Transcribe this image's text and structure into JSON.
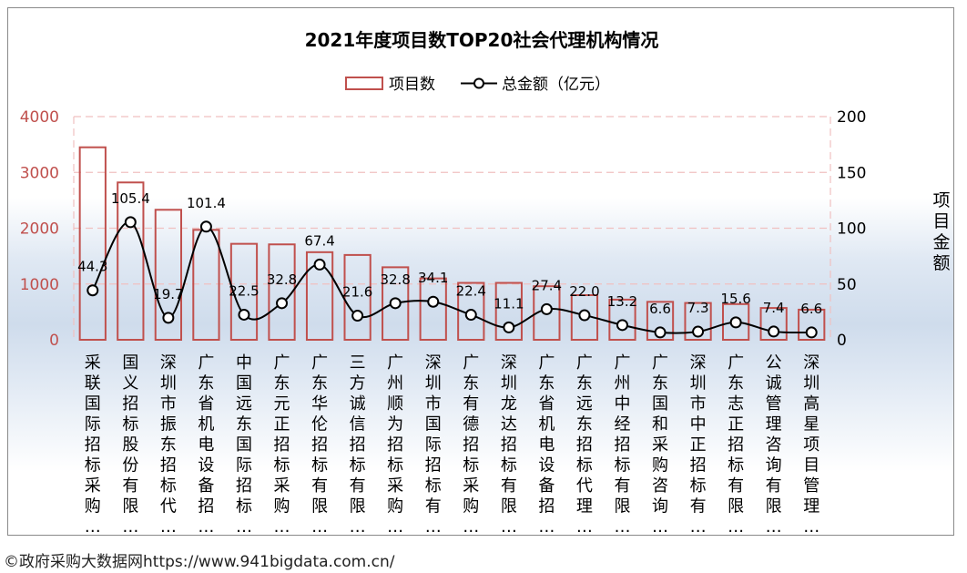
{
  "chart_data": {
    "type": "bar",
    "title": "2021年度项目数TOP20社会代理机构情况",
    "legend": {
      "position": "top-center",
      "bar_label": "项目数",
      "line_label": "总金额（亿元）"
    },
    "categories": [
      "采联国际招标采购…",
      "国义招标股份有限…",
      "深圳市振东招标代…",
      "广东省机电设备招…",
      "中国远东国际招标…",
      "广东元正招标采购…",
      "广东华伦招标有限…",
      "三方诚信招标有限…",
      "广州顺为招标采购…",
      "深圳市国际招标有…",
      "广东有德招标采购…",
      "深圳龙达招标有限…",
      "广东省机电设备招…",
      "广东远东招标代理…",
      "广州中经招标有限…",
      "广东国和采购咨询…",
      "深圳市中正招标有…",
      "广东志正招标有限…",
      "公诚管理咨询有限…",
      "深圳高星项目管理…"
    ],
    "series": [
      {
        "name": "项目数",
        "type": "bar",
        "axis": "left",
        "values": [
          3450,
          2820,
          2330,
          1970,
          1720,
          1710,
          1570,
          1520,
          1300,
          1100,
          1020,
          1020,
          960,
          800,
          720,
          680,
          660,
          640,
          570,
          540
        ]
      },
      {
        "name": "总金额（亿元）",
        "type": "line",
        "axis": "right",
        "values": [
          44.3,
          105.4,
          19.7,
          101.4,
          22.5,
          32.8,
          67.4,
          21.6,
          32.8,
          34.1,
          22.4,
          11.1,
          27.4,
          22.0,
          13.2,
          6.6,
          7.3,
          15.6,
          7.4,
          6.6
        ],
        "labels": [
          "44.3",
          "105.4",
          "19.7",
          "101.4",
          "22.5",
          "32.8",
          "67.4",
          "21.6",
          "32.8",
          "34.1",
          "22.4",
          "11.1",
          "27.4",
          "22.0",
          "13.2",
          "6.6",
          "7.3",
          "15.6",
          "7.4",
          "6.6"
        ]
      }
    ],
    "y_left": {
      "range": [
        0,
        4000
      ],
      "ticks": [
        "0",
        "1000",
        "2000",
        "3000",
        "4000"
      ]
    },
    "y_right": {
      "range": [
        0,
        200
      ],
      "ticks": [
        "0",
        "50",
        "100",
        "150",
        "200"
      ],
      "label": "项目金额"
    },
    "grid": true,
    "colors": {
      "bar_edge": "#c0504d",
      "line": "#000000",
      "left_tick": "#c0504d",
      "grid": "#f0c0c0"
    }
  },
  "footer": {
    "text": "©政府采购大数据网https://www.941bigdata.com.cn/"
  }
}
